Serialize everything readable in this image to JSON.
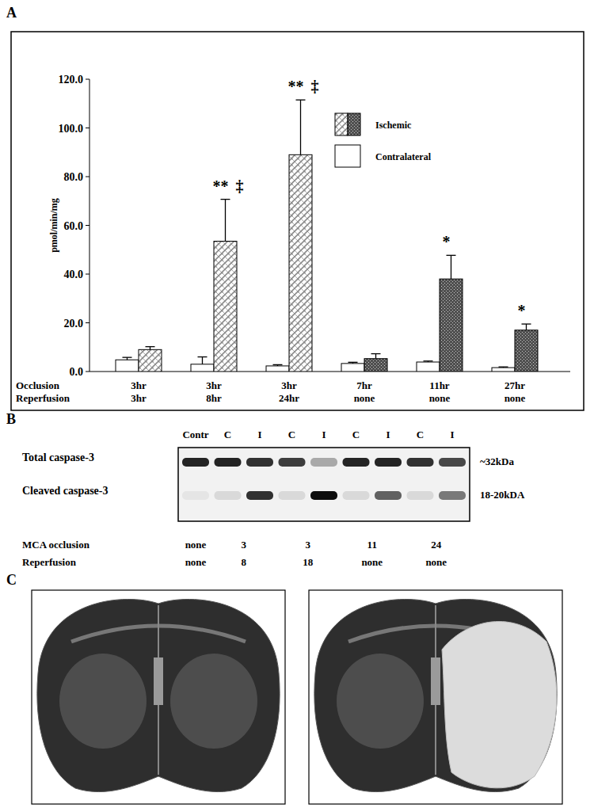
{
  "panel_labels": [
    "A",
    "B",
    "C"
  ],
  "chart_data": {
    "type": "bar",
    "y_label": "pmol/min/mg",
    "categories": [
      "3hr",
      "3hr",
      "3hr",
      "7hr",
      "11hr",
      "27hr"
    ],
    "category_rows": [
      "Occlusion",
      "Reperfusion"
    ],
    "reperfusion": [
      "3hr",
      "8hr",
      "24hr",
      "none",
      "none",
      "none"
    ],
    "ylim": [
      0,
      120
    ],
    "yticks": [
      {
        "value": 0,
        "label": "0.0"
      },
      {
        "value": 20,
        "label": "20.0"
      },
      {
        "value": 40,
        "label": "40.0"
      },
      {
        "value": 60,
        "label": "60.0"
      },
      {
        "value": 80,
        "label": "80.0"
      },
      {
        "value": 100,
        "label": "100.0"
      },
      {
        "value": 120,
        "label": "120.0"
      }
    ],
    "legend": "top",
    "series": [
      {
        "name": "Contralateral",
        "color": "#ffffff",
        "values": [
          4.8,
          3.0,
          2.3,
          3.3,
          3.9,
          1.6
        ],
        "errors": [
          1.0,
          3.0,
          0.5,
          0.5,
          0.4,
          0.3
        ]
      },
      {
        "name": "Ischemic",
        "colors": [
          "#8c8c8c",
          "#8c8c8c",
          "#8c8c8c",
          "#505050",
          "#505050",
          "#505050"
        ],
        "values": [
          9.0,
          53.5,
          89.0,
          5.3,
          38.0,
          17.0
        ],
        "errors": [
          1.2,
          17.2,
          22.5,
          2.0,
          9.7,
          2.5
        ],
        "significance": [
          null,
          "**",
          "**",
          null,
          "*",
          "*"
        ],
        "significance_b": [
          null,
          "‡",
          "‡",
          null,
          null,
          null
        ]
      }
    ]
  },
  "blot": {
    "lanes": [
      "Contr",
      "C",
      "I",
      "C",
      "I",
      "C",
      "I",
      "C",
      "I"
    ],
    "rows": [
      {
        "name": "Total caspase-3",
        "size": "~32kDa",
        "intensity": [
          0.85,
          0.85,
          0.8,
          0.75,
          0.3,
          0.85,
          0.85,
          0.8,
          0.7
        ]
      },
      {
        "name": "Cleaved caspase-3",
        "size": "18-20kDA",
        "intensity": [
          0.05,
          0.1,
          0.8,
          0.1,
          0.95,
          0.1,
          0.6,
          0.1,
          0.5
        ]
      }
    ],
    "conditions": [
      {
        "name": "MCA occlusion",
        "values": [
          "none",
          "3",
          "3",
          "11",
          "24"
        ]
      },
      {
        "name": "Reperfusion",
        "values": [
          "none",
          "8",
          "18",
          "none",
          "none"
        ]
      }
    ]
  }
}
